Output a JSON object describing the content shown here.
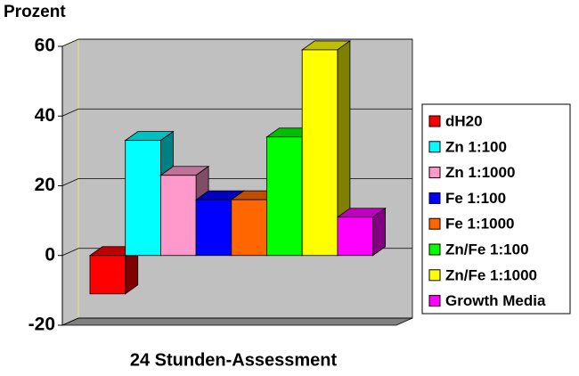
{
  "chart_data": {
    "type": "bar3d",
    "y_label": "Prozent",
    "x_label": "24 Stunden-Assessment",
    "ylim": [
      -20,
      60
    ],
    "yticks": [
      -20,
      0,
      20,
      40,
      60
    ],
    "grid": true,
    "legend": "right",
    "series": [
      {
        "name": "dH20",
        "color": "#ff0000",
        "values": [
          -11
        ]
      },
      {
        "name": "Zn 1:100",
        "color": "#00ffff",
        "values": [
          33
        ]
      },
      {
        "name": "Zn 1:1000",
        "color": "#ff99cc",
        "values": [
          23
        ]
      },
      {
        "name": "Fe 1:100",
        "color": "#0000ff",
        "values": [
          16
        ]
      },
      {
        "name": "Fe 1:1000",
        "color": "#ff6600",
        "values": [
          16
        ]
      },
      {
        "name": "Zn/Fe 1:100",
        "color": "#00ff00",
        "values": [
          34
        ]
      },
      {
        "name": "Zn/Fe 1:1000",
        "color": "#ffff00",
        "values": [
          59
        ]
      },
      {
        "name": "Growth Media",
        "color": "#ff00ff",
        "values": [
          11
        ]
      }
    ]
  }
}
